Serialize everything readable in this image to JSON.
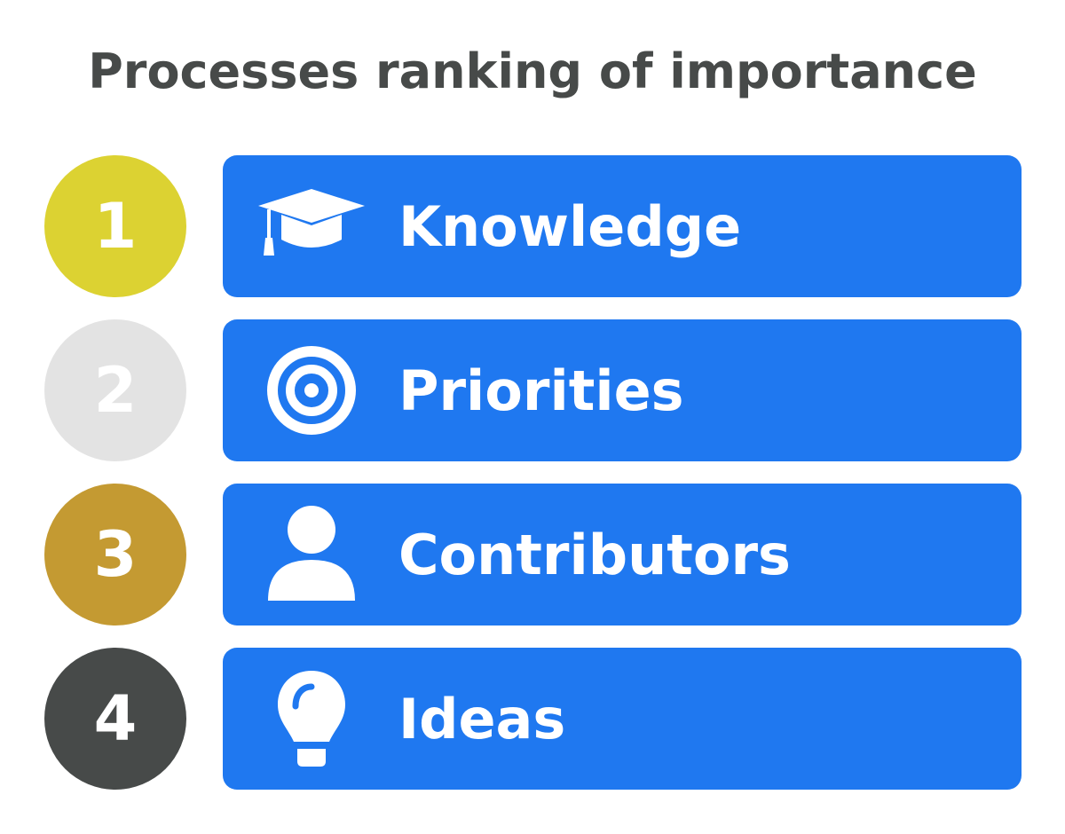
{
  "title": "Processes ranking of importance",
  "items": [
    {
      "rank": "1",
      "label": "Knowledge",
      "icon": "graduation-cap-icon",
      "circle_color": "#dcd232"
    },
    {
      "rank": "2",
      "label": "Priorities",
      "icon": "target-icon",
      "circle_color": "#e3e3e3"
    },
    {
      "rank": "3",
      "label": "Contributors",
      "icon": "person-icon",
      "circle_color": "#c49a32"
    },
    {
      "rank": "4",
      "label": "Ideas",
      "icon": "lightbulb-icon",
      "circle_color": "#474a49"
    }
  ],
  "bar_color": "#1f78f0",
  "text_color": "#474a49"
}
